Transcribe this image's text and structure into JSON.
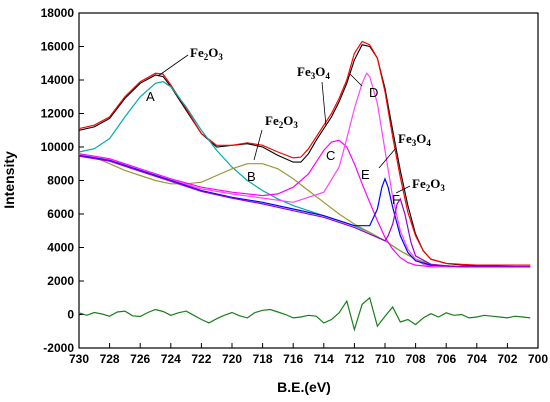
{
  "chart_data": {
    "type": "line",
    "xlabel": "B.E.(eV)",
    "ylabel": "Intensity",
    "xlim": [
      730,
      700
    ],
    "ylim": [
      -2000,
      18000
    ],
    "x_reversed": true,
    "grid": false,
    "legend": "none",
    "x_ticks": [
      "730",
      "728",
      "726",
      "724",
      "722",
      "720",
      "718",
      "716",
      "714",
      "712",
      "710",
      "708",
      "706",
      "704",
      "702",
      "700"
    ],
    "y_ticks": [
      "-2000",
      "0",
      "2000",
      "4000",
      "6000",
      "8000",
      "10000",
      "12000",
      "14000",
      "16000",
      "18000"
    ],
    "series": [
      {
        "color": "#000000",
        "x": [
          730,
          729,
          728,
          727,
          726,
          725,
          724.5,
          724,
          723,
          722,
          721,
          720,
          719,
          718,
          717,
          716,
          715.5,
          715,
          714.5,
          714,
          713.5,
          713,
          712.5,
          712,
          711.5,
          711,
          710.5,
          710,
          709.5,
          709,
          708.5,
          708,
          707.5,
          707,
          706,
          705,
          704,
          703,
          702,
          701,
          700.5
        ],
        "y": [
          11000,
          11200,
          11700,
          12900,
          13800,
          14300,
          14200,
          13600,
          12200,
          10800,
          10000,
          10100,
          10200,
          10000,
          9500,
          9100,
          9100,
          9600,
          10400,
          11100,
          11800,
          12700,
          13800,
          15200,
          16100,
          16000,
          15300,
          13500,
          11000,
          8600,
          6500,
          4800,
          3800,
          3300,
          3050,
          2950,
          2900,
          2900,
          2880,
          2850,
          2850
        ]
      },
      {
        "color": "#ff0000",
        "x": [
          730,
          729,
          728,
          727,
          726,
          725,
          724.5,
          724,
          723,
          722,
          721,
          720,
          719,
          718,
          717,
          716,
          715.5,
          715,
          714.5,
          714,
          713.5,
          713,
          712.5,
          712,
          711.5,
          711,
          710.5,
          710,
          709.5,
          709,
          708.5,
          708,
          707.5,
          707,
          706,
          705,
          704,
          703,
          702,
          701,
          700.5
        ],
        "y": [
          11100,
          11300,
          11800,
          13000,
          13900,
          14400,
          14350,
          13700,
          12300,
          10800,
          10100,
          10100,
          10250,
          10100,
          9700,
          9350,
          9400,
          9900,
          10600,
          11300,
          12000,
          12900,
          14000,
          15600,
          16300,
          16100,
          15300,
          13300,
          10600,
          8200,
          6100,
          4700,
          3800,
          3300,
          3050,
          3000,
          2950,
          2950,
          2950,
          2950,
          2950
        ]
      },
      {
        "color": "#00aaaa",
        "x": [
          730,
          729,
          728,
          727,
          726,
          725,
          724.5,
          724,
          723,
          722,
          721,
          720,
          719,
          718,
          717,
          716,
          715,
          714,
          713,
          712,
          711,
          710,
          709,
          708,
          707,
          706,
          705,
          704,
          703,
          702,
          701,
          700.5
        ],
        "y": [
          9700,
          9900,
          10500,
          11800,
          13000,
          13800,
          13900,
          13600,
          12400,
          11000,
          9800,
          8800,
          8000,
          7400,
          6900,
          6500,
          6200,
          5900,
          5600,
          5300,
          4900,
          4400,
          3800,
          3300,
          3000,
          2900,
          2850,
          2850,
          2850,
          2850,
          2850,
          2850
        ]
      },
      {
        "color": "#999933",
        "x": [
          730,
          729,
          728,
          727,
          726,
          725,
          724,
          723,
          722,
          721,
          720,
          719,
          718,
          717,
          716,
          715,
          714,
          713,
          712,
          711,
          710,
          709,
          708,
          707,
          706,
          705,
          704,
          703,
          702,
          701,
          700.5
        ],
        "y": [
          9600,
          9400,
          9000,
          8600,
          8300,
          8000,
          7800,
          7800,
          7900,
          8300,
          8700,
          9000,
          9000,
          8700,
          8100,
          7400,
          6700,
          6000,
          5400,
          4900,
          4400,
          3800,
          3300,
          3000,
          2900,
          2850,
          2850,
          2850,
          2850,
          2850,
          2850
        ]
      },
      {
        "color": "#ff00ff",
        "x": [
          730,
          728,
          726,
          724,
          722,
          720,
          718,
          717,
          716,
          715,
          714.5,
          714,
          713.5,
          713,
          712.5,
          712,
          711.5,
          711,
          710.5,
          710,
          709.5,
          709,
          708.5,
          708,
          707.5,
          707,
          706,
          705,
          704,
          703,
          702,
          701,
          700.5
        ],
        "y": [
          9600,
          9300,
          8700,
          8100,
          7600,
          7300,
          7100,
          7200,
          7600,
          8400,
          9100,
          9800,
          10300,
          10400,
          10000,
          9000,
          7800,
          6700,
          5600,
          4600,
          3900,
          3400,
          3100,
          2950,
          2900,
          2850,
          2850,
          2850,
          2850,
          2850,
          2850,
          2850,
          2850
        ]
      },
      {
        "color": "#ff44ff",
        "x": [
          730,
          728,
          726,
          724,
          722,
          720,
          718,
          716,
          714,
          713,
          712.5,
          712,
          711.5,
          711.2,
          711,
          710.5,
          710,
          709.5,
          709,
          708.5,
          708,
          707.5,
          707,
          706,
          705,
          704,
          703,
          702,
          701,
          700.5
        ],
        "y": [
          9550,
          9250,
          8650,
          8050,
          7500,
          7200,
          6950,
          6700,
          7300,
          8800,
          10500,
          12300,
          13800,
          14400,
          14200,
          12600,
          9800,
          7000,
          5000,
          3900,
          3300,
          3000,
          2900,
          2850,
          2850,
          2850,
          2850,
          2850,
          2850,
          2850
        ]
      },
      {
        "color": "#0000ff",
        "x": [
          730,
          728,
          726,
          724,
          722,
          720,
          718,
          716,
          714,
          712,
          711,
          710.5,
          710.2,
          710,
          709.8,
          709.5,
          709,
          708.5,
          708,
          707,
          706,
          705,
          704,
          703,
          702,
          701,
          700.5
        ],
        "y": [
          9500,
          9200,
          8600,
          8000,
          7400,
          7000,
          6700,
          6300,
          5900,
          5300,
          5300,
          6300,
          7600,
          8100,
          7600,
          6400,
          4700,
          3700,
          3200,
          2950,
          2900,
          2850,
          2850,
          2850,
          2850,
          2850,
          2850
        ]
      },
      {
        "color": "#9900cc",
        "x": [
          730,
          728,
          726,
          724,
          722,
          720,
          718,
          716,
          714,
          712,
          711,
          710,
          709.8,
          709.5,
          709.2,
          709,
          708.7,
          708.3,
          708,
          707,
          706,
          705,
          704,
          703,
          702,
          701,
          700.5
        ],
        "y": [
          9450,
          9150,
          8550,
          7950,
          7350,
          6950,
          6600,
          6200,
          5800,
          5200,
          4800,
          4400,
          4700,
          5400,
          6600,
          6900,
          6000,
          4300,
          3500,
          3000,
          2900,
          2850,
          2850,
          2850,
          2850,
          2850,
          2850
        ]
      },
      {
        "color": "#1a7f1a",
        "x": [
          730,
          729.5,
          729,
          728.5,
          728,
          727.5,
          727,
          726.5,
          726,
          725.5,
          725,
          724.5,
          724,
          723.5,
          723,
          722.5,
          722,
          721.5,
          721,
          720.5,
          720,
          719.5,
          719,
          718.5,
          718,
          717.5,
          717,
          716.5,
          716,
          715.5,
          715,
          714.5,
          714,
          713.5,
          713,
          712.5,
          712,
          711.5,
          711,
          710.5,
          710,
          709.5,
          709,
          708.5,
          708,
          707.5,
          707,
          706.5,
          706,
          705.5,
          705,
          704.5,
          704,
          703.5,
          703,
          702.5,
          702,
          701.5,
          701,
          700.5
        ],
        "y": [
          100,
          -50,
          120,
          30,
          -100,
          150,
          200,
          -80,
          -120,
          120,
          300,
          180,
          -50,
          100,
          200,
          -50,
          -300,
          -500,
          -250,
          -50,
          120,
          -80,
          -200,
          120,
          250,
          300,
          150,
          0,
          -200,
          -150,
          -50,
          -100,
          -500,
          -300,
          100,
          800,
          -900,
          600,
          1000,
          -700,
          -100,
          450,
          -450,
          -300,
          -600,
          -200,
          50,
          -150,
          100,
          -50,
          0,
          -200,
          -150,
          -50,
          -100,
          -150,
          -200,
          -100,
          -150,
          -200
        ]
      }
    ],
    "peak_labels": [
      "A",
      "B",
      "C",
      "D",
      "E",
      "F"
    ],
    "annotations": [
      {
        "base": "Fe",
        "sub1": "2",
        "mid": "O",
        "sub2": "3"
      },
      {
        "base": "Fe",
        "sub1": "2",
        "mid": "O",
        "sub2": "3"
      },
      {
        "base": "Fe",
        "sub1": "3",
        "mid": "O",
        "sub2": "4"
      },
      {
        "base": "Fe",
        "sub1": "3",
        "mid": "O",
        "sub2": "4"
      },
      {
        "base": "Fe",
        "sub1": "2",
        "mid": "O",
        "sub2": "3"
      }
    ]
  }
}
